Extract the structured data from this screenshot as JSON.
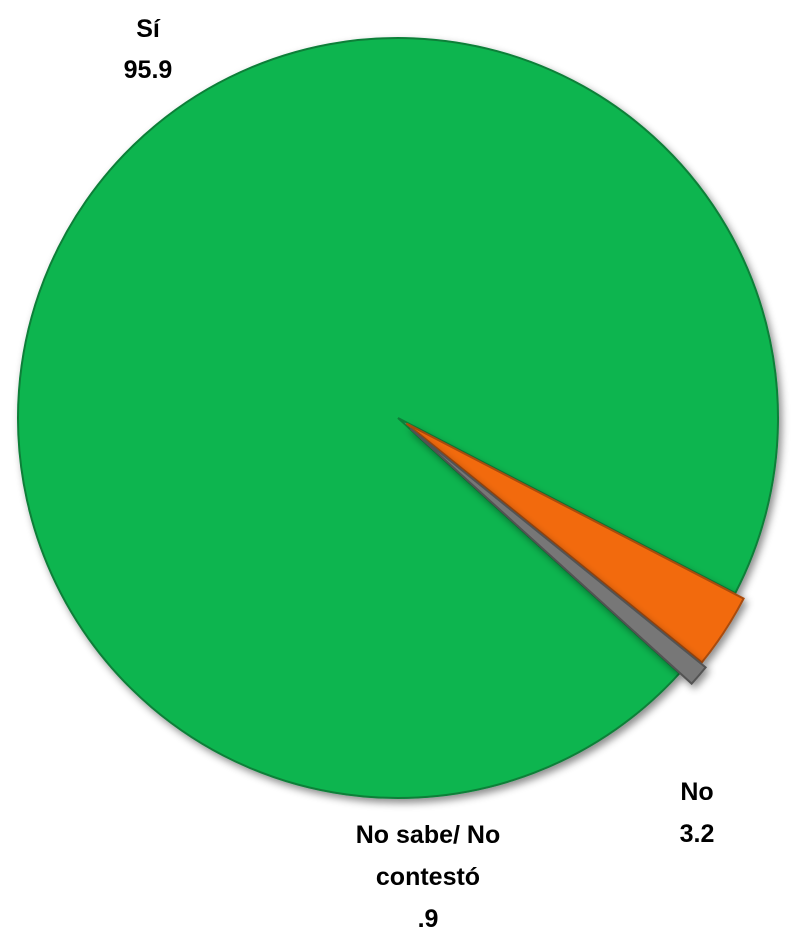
{
  "chart_data": {
    "type": "pie",
    "slices": [
      {
        "label": "Sí",
        "value": 95.9,
        "value_label": "95.9",
        "color": "#0cb550"
      },
      {
        "label": "No",
        "value": 3.2,
        "value_label": "3.2",
        "color": "#f26b0f"
      },
      {
        "label_lines": [
          "No sabe/ No",
          "contestó"
        ],
        "value": 0.9,
        "value_label": ".9",
        "color": "#777777"
      }
    ],
    "legend": "none"
  }
}
